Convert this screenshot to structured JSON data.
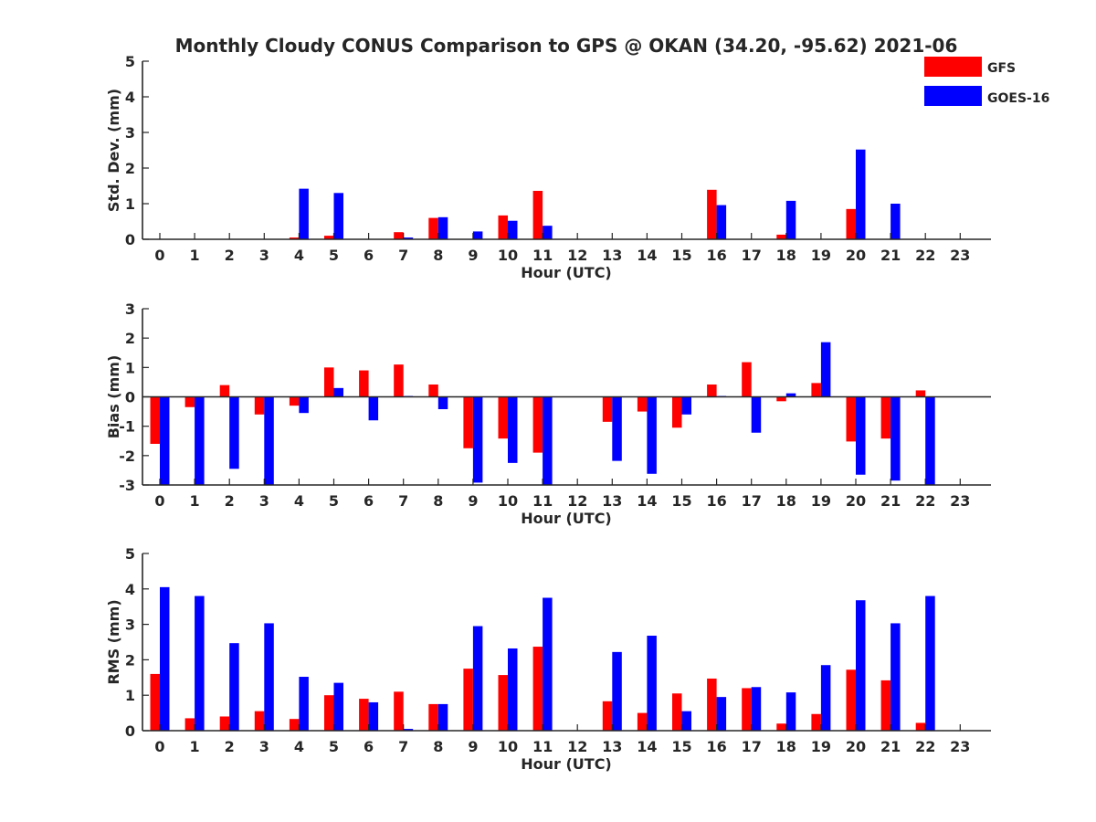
{
  "figure_title": "Monthly Cloudy CONUS Comparison to GPS @ OKAN (34.20, -95.62) 2021-06",
  "legend": [
    {
      "label": "GFS",
      "color": "#ff0000"
    },
    {
      "label": "GOES-16",
      "color": "#0000ff"
    }
  ],
  "chart_data": [
    {
      "type": "bar",
      "xlabel": "Hour (UTC)",
      "ylabel": "Std. Dev. (mm)",
      "ylim": [
        0,
        5
      ],
      "yticks": [
        0,
        1,
        2,
        3,
        4,
        5
      ],
      "categories": [
        "0",
        "1",
        "2",
        "3",
        "4",
        "5",
        "6",
        "7",
        "8",
        "9",
        "10",
        "11",
        "12",
        "13",
        "14",
        "15",
        "16",
        "17",
        "18",
        "19",
        "20",
        "21",
        "22",
        "23"
      ],
      "series": [
        {
          "name": "GFS",
          "color": "#ff0000",
          "values": [
            0,
            0,
            0,
            0,
            0.05,
            0.1,
            0,
            0.2,
            0.6,
            0,
            0.67,
            1.36,
            0,
            0,
            0,
            0,
            1.39,
            0,
            0.13,
            0,
            0.85,
            0,
            0,
            0
          ]
        },
        {
          "name": "GOES-16",
          "color": "#0000ff",
          "values": [
            0,
            0,
            0,
            0,
            1.42,
            1.3,
            0,
            0.05,
            0.62,
            0.22,
            0.52,
            0.38,
            0,
            0,
            0,
            0,
            0.96,
            0,
            1.08,
            0,
            2.52,
            1.0,
            0,
            0
          ]
        }
      ]
    },
    {
      "type": "bar",
      "xlabel": "Hour (UTC)",
      "ylabel": "Bias (mm)",
      "ylim": [
        -3,
        3
      ],
      "yticks": [
        -3,
        -2,
        -1,
        0,
        1,
        2,
        3
      ],
      "categories": [
        "0",
        "1",
        "2",
        "3",
        "4",
        "5",
        "6",
        "7",
        "8",
        "9",
        "10",
        "11",
        "12",
        "13",
        "14",
        "15",
        "16",
        "17",
        "18",
        "19",
        "20",
        "21",
        "22",
        "23"
      ],
      "series": [
        {
          "name": "GFS",
          "color": "#ff0000",
          "values": [
            -1.6,
            -0.35,
            0.4,
            -0.6,
            -0.3,
            1.0,
            0.9,
            1.1,
            0.42,
            -1.75,
            -1.42,
            -1.9,
            0,
            -0.85,
            -0.5,
            -1.05,
            0.42,
            1.18,
            -0.15,
            0.47,
            -1.52,
            -1.42,
            0.22,
            0
          ]
        },
        {
          "name": "GOES-16",
          "color": "#0000ff",
          "values": [
            -3.0,
            -3.0,
            -2.45,
            -3.0,
            -0.55,
            0.3,
            -0.8,
            0.03,
            -0.42,
            -2.92,
            -2.25,
            -3.0,
            0,
            -2.18,
            -2.62,
            -0.6,
            0.03,
            -1.22,
            0.12,
            1.86,
            -2.65,
            -2.85,
            -3.0,
            0
          ]
        }
      ]
    },
    {
      "type": "bar",
      "xlabel": "Hour (UTC)",
      "ylabel": "RMS (mm)",
      "ylim": [
        0,
        5
      ],
      "yticks": [
        0,
        1,
        2,
        3,
        4,
        5
      ],
      "categories": [
        "0",
        "1",
        "2",
        "3",
        "4",
        "5",
        "6",
        "7",
        "8",
        "9",
        "10",
        "11",
        "12",
        "13",
        "14",
        "15",
        "16",
        "17",
        "18",
        "19",
        "20",
        "21",
        "22",
        "23"
      ],
      "series": [
        {
          "name": "GFS",
          "color": "#ff0000",
          "values": [
            1.6,
            0.35,
            0.4,
            0.55,
            0.33,
            1.0,
            0.9,
            1.1,
            0.75,
            1.75,
            1.57,
            2.37,
            0,
            0.83,
            0.5,
            1.05,
            1.47,
            1.2,
            0.2,
            0.47,
            1.72,
            1.42,
            0.22,
            0
          ]
        },
        {
          "name": "GOES-16",
          "color": "#0000ff",
          "values": [
            4.05,
            3.8,
            2.47,
            3.03,
            1.52,
            1.35,
            0.8,
            0.05,
            0.75,
            2.95,
            2.32,
            3.75,
            0,
            2.22,
            2.68,
            0.55,
            0.95,
            1.23,
            1.08,
            1.85,
            3.68,
            3.03,
            3.8,
            0
          ]
        }
      ]
    }
  ]
}
